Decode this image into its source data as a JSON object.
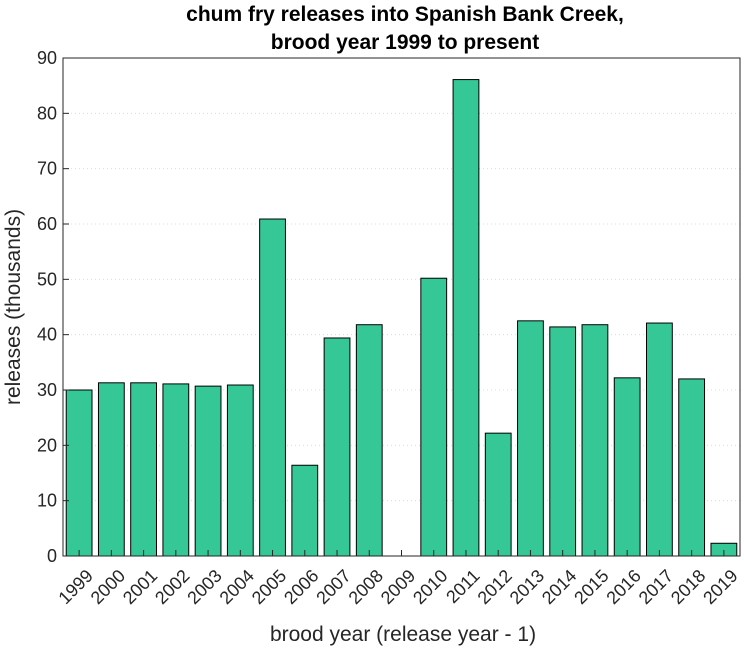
{
  "chart_data": {
    "type": "bar",
    "title_lines": [
      "chum fry releases into Spanish Bank Creek,",
      "brood year 1999 to present"
    ],
    "xlabel": "brood year (release year - 1)",
    "ylabel": "releases (thousands)",
    "categories": [
      "1999",
      "2000",
      "2001",
      "2002",
      "2003",
      "2004",
      "2005",
      "2006",
      "2007",
      "2008",
      "2009",
      "2010",
      "2011",
      "2012",
      "2013",
      "2014",
      "2015",
      "2016",
      "2017",
      "2018",
      "2019"
    ],
    "values": [
      30.0,
      31.3,
      31.3,
      31.1,
      30.7,
      30.9,
      60.9,
      16.4,
      39.4,
      41.8,
      0,
      50.2,
      86.1,
      22.2,
      42.5,
      41.4,
      41.8,
      32.2,
      42.1,
      32.0,
      2.3
    ],
    "ylim": [
      0,
      90
    ],
    "yticks": [
      0,
      10,
      20,
      30,
      40,
      50,
      60,
      70,
      80,
      90
    ],
    "grid": true,
    "colors": {
      "bar": "#35c896",
      "bar_edge": "#000000"
    }
  }
}
